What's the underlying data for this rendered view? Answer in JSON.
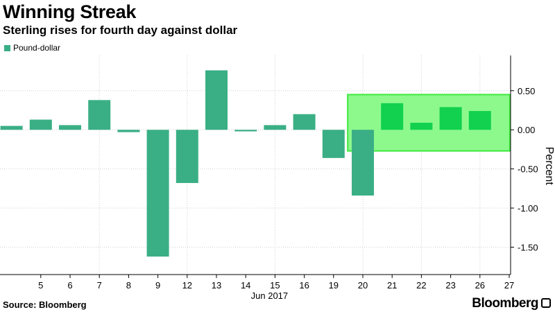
{
  "header": {
    "title": "Winning Streak",
    "subtitle": "Sterling rises for fourth day against dollar"
  },
  "legend": {
    "label": "Pound-dollar",
    "color": "#3aaf85"
  },
  "footer": {
    "source": "Source: Bloomberg",
    "brand": "Bloomberg"
  },
  "chart_data": {
    "type": "bar",
    "title": "Winning Streak",
    "subtitle": "Sterling rises for fourth day against dollar",
    "categories": [
      "",
      "5",
      "6",
      "7",
      "8",
      "9",
      "12",
      "13",
      "14",
      "15",
      "16",
      "19",
      "20",
      "21",
      "22",
      "23",
      "26",
      "27"
    ],
    "series": [
      {
        "name": "Pound-dollar",
        "color": "#3aaf85",
        "values": [
          0.05,
          0.13,
          0.06,
          0.38,
          -0.03,
          -1.62,
          -0.68,
          0.76,
          -0.02,
          0.06,
          0.2,
          -0.36,
          -0.84,
          0.34,
          0.09,
          0.29,
          0.24,
          null
        ]
      }
    ],
    "highlight": {
      "categories": [
        "21",
        "22",
        "23",
        "26"
      ],
      "bar_color": "#11d14f",
      "box_fill": "#8df98d",
      "box_stroke": "#3ee83e",
      "ylim": [
        -0.27,
        0.45
      ]
    },
    "xlabel": "Jun 2017",
    "ylabel": "Percent",
    "ylim": [
      -1.85,
      0.95
    ],
    "yticks": [
      0.5,
      0.0,
      -0.5,
      -1.0,
      -1.5
    ],
    "ytick_labels": [
      "0.50",
      "0.00",
      "-0.50",
      "-1.00",
      "-1.50"
    ],
    "y_axis_side": "right",
    "grid": "dotted"
  }
}
